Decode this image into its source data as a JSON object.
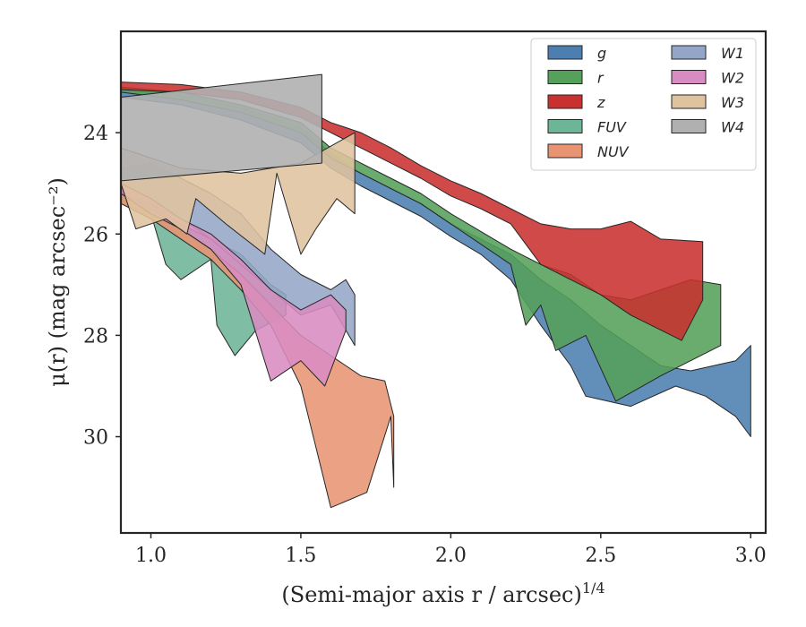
{
  "chart_data": {
    "type": "area",
    "xlabel": "(Semi-major axis r / arcsec)",
    "xlabel_sup": "1/4",
    "ylabel": "μ(r) (mag arcsec⁻²)",
    "xlim": [
      0.9,
      3.05
    ],
    "ylim": [
      31.9,
      22.0
    ],
    "y_inverted": true,
    "xticks": [
      1.0,
      1.5,
      2.0,
      2.5,
      3.0
    ],
    "xtick_labels": [
      "1.0",
      "1.5",
      "2.0",
      "2.5",
      "3.0"
    ],
    "yticks": [
      24,
      26,
      28,
      30
    ],
    "ytick_labels": [
      "24",
      "26",
      "28",
      "30"
    ],
    "legend_position": "top-right",
    "legend_columns": 2,
    "series": [
      {
        "name": "g",
        "color": "#4c7fb0",
        "upper": [
          [
            0.9,
            23.1
          ],
          [
            1.1,
            23.25
          ],
          [
            1.3,
            23.5
          ],
          [
            1.5,
            23.9
          ],
          [
            1.6,
            24.4
          ],
          [
            1.7,
            24.8
          ],
          [
            1.8,
            25.1
          ],
          [
            1.9,
            25.4
          ],
          [
            2.0,
            25.8
          ],
          [
            2.1,
            26.1
          ],
          [
            2.2,
            26.4
          ],
          [
            2.3,
            26.9
          ],
          [
            2.4,
            27.3
          ],
          [
            2.5,
            27.8
          ],
          [
            2.6,
            28.2
          ],
          [
            2.7,
            28.6
          ],
          [
            2.8,
            28.7
          ],
          [
            2.95,
            28.5
          ],
          [
            3.0,
            28.2
          ]
        ],
        "lower": [
          [
            0.9,
            23.3
          ],
          [
            1.1,
            23.45
          ],
          [
            1.3,
            23.75
          ],
          [
            1.5,
            24.2
          ],
          [
            1.6,
            24.7
          ],
          [
            1.7,
            25.05
          ],
          [
            1.8,
            25.35
          ],
          [
            1.9,
            25.65
          ],
          [
            2.0,
            26.05
          ],
          [
            2.1,
            26.4
          ],
          [
            2.2,
            26.9
          ],
          [
            2.3,
            27.8
          ],
          [
            2.4,
            28.6
          ],
          [
            2.45,
            29.2
          ],
          [
            2.6,
            29.4
          ],
          [
            2.75,
            29.0
          ],
          [
            2.85,
            29.2
          ],
          [
            2.95,
            29.6
          ],
          [
            3.0,
            30.0
          ]
        ]
      },
      {
        "name": "r",
        "color": "#55a05a",
        "upper": [
          [
            0.9,
            23.1
          ],
          [
            1.1,
            23.2
          ],
          [
            1.3,
            23.45
          ],
          [
            1.5,
            23.8
          ],
          [
            1.6,
            24.3
          ],
          [
            1.7,
            24.6
          ],
          [
            1.8,
            24.9
          ],
          [
            1.9,
            25.2
          ],
          [
            2.0,
            25.6
          ],
          [
            2.1,
            25.95
          ],
          [
            2.2,
            26.3
          ],
          [
            2.3,
            26.6
          ],
          [
            2.4,
            26.8
          ],
          [
            2.5,
            27.2
          ],
          [
            2.6,
            27.3
          ],
          [
            2.7,
            27.1
          ],
          [
            2.8,
            26.9
          ],
          [
            2.9,
            27.0
          ]
        ],
        "lower": [
          [
            0.9,
            23.2
          ],
          [
            1.1,
            23.35
          ],
          [
            1.3,
            23.6
          ],
          [
            1.5,
            24.0
          ],
          [
            1.6,
            24.5
          ],
          [
            1.7,
            24.8
          ],
          [
            1.8,
            25.1
          ],
          [
            1.9,
            25.4
          ],
          [
            2.0,
            25.8
          ],
          [
            2.1,
            26.2
          ],
          [
            2.2,
            26.6
          ],
          [
            2.25,
            27.8
          ],
          [
            2.3,
            27.4
          ],
          [
            2.35,
            28.3
          ],
          [
            2.45,
            28.0
          ],
          [
            2.55,
            29.3
          ],
          [
            2.7,
            28.8
          ],
          [
            2.9,
            28.2
          ]
        ]
      },
      {
        "name": "z",
        "color": "#c8312f",
        "upper": [
          [
            0.9,
            23.0
          ],
          [
            1.1,
            23.05
          ],
          [
            1.3,
            23.2
          ],
          [
            1.5,
            23.5
          ],
          [
            1.6,
            23.8
          ],
          [
            1.7,
            24.0
          ],
          [
            1.8,
            24.3
          ],
          [
            1.9,
            24.65
          ],
          [
            2.0,
            24.95
          ],
          [
            2.1,
            25.2
          ],
          [
            2.2,
            25.5
          ],
          [
            2.3,
            25.8
          ],
          [
            2.4,
            25.9
          ],
          [
            2.5,
            25.9
          ],
          [
            2.6,
            25.75
          ],
          [
            2.7,
            26.1
          ],
          [
            2.84,
            26.15
          ]
        ],
        "lower": [
          [
            0.9,
            23.15
          ],
          [
            1.1,
            23.2
          ],
          [
            1.3,
            23.35
          ],
          [
            1.5,
            23.7
          ],
          [
            1.6,
            24.0
          ],
          [
            1.7,
            24.3
          ],
          [
            1.8,
            24.6
          ],
          [
            1.9,
            24.9
          ],
          [
            2.0,
            25.25
          ],
          [
            2.1,
            25.5
          ],
          [
            2.2,
            25.8
          ],
          [
            2.3,
            26.6
          ],
          [
            2.4,
            26.9
          ],
          [
            2.5,
            27.2
          ],
          [
            2.6,
            27.6
          ],
          [
            2.77,
            28.1
          ],
          [
            2.84,
            27.3
          ]
        ]
      },
      {
        "name": "FUV",
        "color": "#6db597",
        "upper": [
          [
            0.9,
            25.2
          ],
          [
            1.0,
            25.4
          ],
          [
            1.1,
            25.8
          ],
          [
            1.2,
            26.1
          ],
          [
            1.3,
            26.4
          ],
          [
            1.4,
            27.0
          ],
          [
            1.45,
            27.2
          ]
        ],
        "lower": [
          [
            0.9,
            25.4
          ],
          [
            1.0,
            25.6
          ],
          [
            1.05,
            26.6
          ],
          [
            1.1,
            26.9
          ],
          [
            1.2,
            26.5
          ],
          [
            1.22,
            27.8
          ],
          [
            1.28,
            28.4
          ],
          [
            1.35,
            27.9
          ],
          [
            1.45,
            27.6
          ]
        ]
      },
      {
        "name": "NUV",
        "color": "#e89473",
        "upper": [
          [
            0.9,
            25.2
          ],
          [
            1.0,
            25.5
          ],
          [
            1.1,
            25.9
          ],
          [
            1.2,
            26.3
          ],
          [
            1.3,
            26.8
          ],
          [
            1.4,
            27.4
          ],
          [
            1.5,
            28.0
          ],
          [
            1.6,
            28.4
          ],
          [
            1.7,
            28.8
          ],
          [
            1.78,
            28.9
          ],
          [
            1.81,
            29.6
          ]
        ],
        "lower": [
          [
            0.9,
            25.4
          ],
          [
            1.0,
            25.7
          ],
          [
            1.1,
            26.1
          ],
          [
            1.2,
            26.5
          ],
          [
            1.3,
            27.1
          ],
          [
            1.4,
            27.8
          ],
          [
            1.5,
            29.0
          ],
          [
            1.6,
            31.4
          ],
          [
            1.72,
            31.1
          ],
          [
            1.8,
            29.6
          ],
          [
            1.81,
            31.0
          ]
        ]
      },
      {
        "name": "W1",
        "color": "#94a6c7",
        "upper": [
          [
            0.9,
            24.7
          ],
          [
            1.0,
            24.6
          ],
          [
            1.1,
            24.9
          ],
          [
            1.2,
            25.2
          ],
          [
            1.3,
            25.6
          ],
          [
            1.4,
            26.3
          ],
          [
            1.5,
            26.8
          ],
          [
            1.6,
            27.1
          ],
          [
            1.65,
            26.9
          ],
          [
            1.68,
            27.2
          ]
        ],
        "lower": [
          [
            0.9,
            25.2
          ],
          [
            1.0,
            25.4
          ],
          [
            1.1,
            25.7
          ],
          [
            1.2,
            26.1
          ],
          [
            1.3,
            26.6
          ],
          [
            1.4,
            27.1
          ],
          [
            1.5,
            27.6
          ],
          [
            1.6,
            27.4
          ],
          [
            1.65,
            27.9
          ],
          [
            1.68,
            28.2
          ]
        ]
      },
      {
        "name": "W2",
        "color": "#d88cc1",
        "upper": [
          [
            0.9,
            25.0
          ],
          [
            1.0,
            25.3
          ],
          [
            1.1,
            25.7
          ],
          [
            1.2,
            26.0
          ],
          [
            1.3,
            26.5
          ],
          [
            1.4,
            27.1
          ],
          [
            1.5,
            27.5
          ],
          [
            1.6,
            27.2
          ],
          [
            1.65,
            27.5
          ]
        ],
        "lower": [
          [
            0.9,
            25.2
          ],
          [
            1.0,
            25.6
          ],
          [
            1.1,
            25.9
          ],
          [
            1.2,
            26.3
          ],
          [
            1.3,
            27.0
          ],
          [
            1.4,
            28.9
          ],
          [
            1.5,
            28.5
          ],
          [
            1.58,
            29.0
          ],
          [
            1.65,
            27.9
          ]
        ]
      },
      {
        "name": "W3",
        "color": "#dfc39e",
        "upper": [
          [
            0.9,
            24.3
          ],
          [
            1.1,
            24.7
          ],
          [
            1.3,
            24.8
          ],
          [
            1.5,
            24.6
          ],
          [
            1.68,
            24.0
          ]
        ],
        "lower": [
          [
            0.9,
            25.0
          ],
          [
            0.95,
            25.9
          ],
          [
            1.05,
            25.7
          ],
          [
            1.12,
            26.0
          ],
          [
            1.15,
            25.3
          ],
          [
            1.25,
            25.8
          ],
          [
            1.38,
            26.4
          ],
          [
            1.42,
            24.8
          ],
          [
            1.5,
            26.4
          ],
          [
            1.55,
            25.9
          ],
          [
            1.62,
            25.3
          ],
          [
            1.68,
            25.6
          ]
        ]
      },
      {
        "name": "W4",
        "color": "#b0b0b0",
        "upper": [
          [
            0.9,
            23.3
          ],
          [
            1.57,
            22.85
          ]
        ],
        "lower": [
          [
            0.9,
            24.95
          ],
          [
            1.57,
            24.6
          ]
        ]
      }
    ]
  }
}
